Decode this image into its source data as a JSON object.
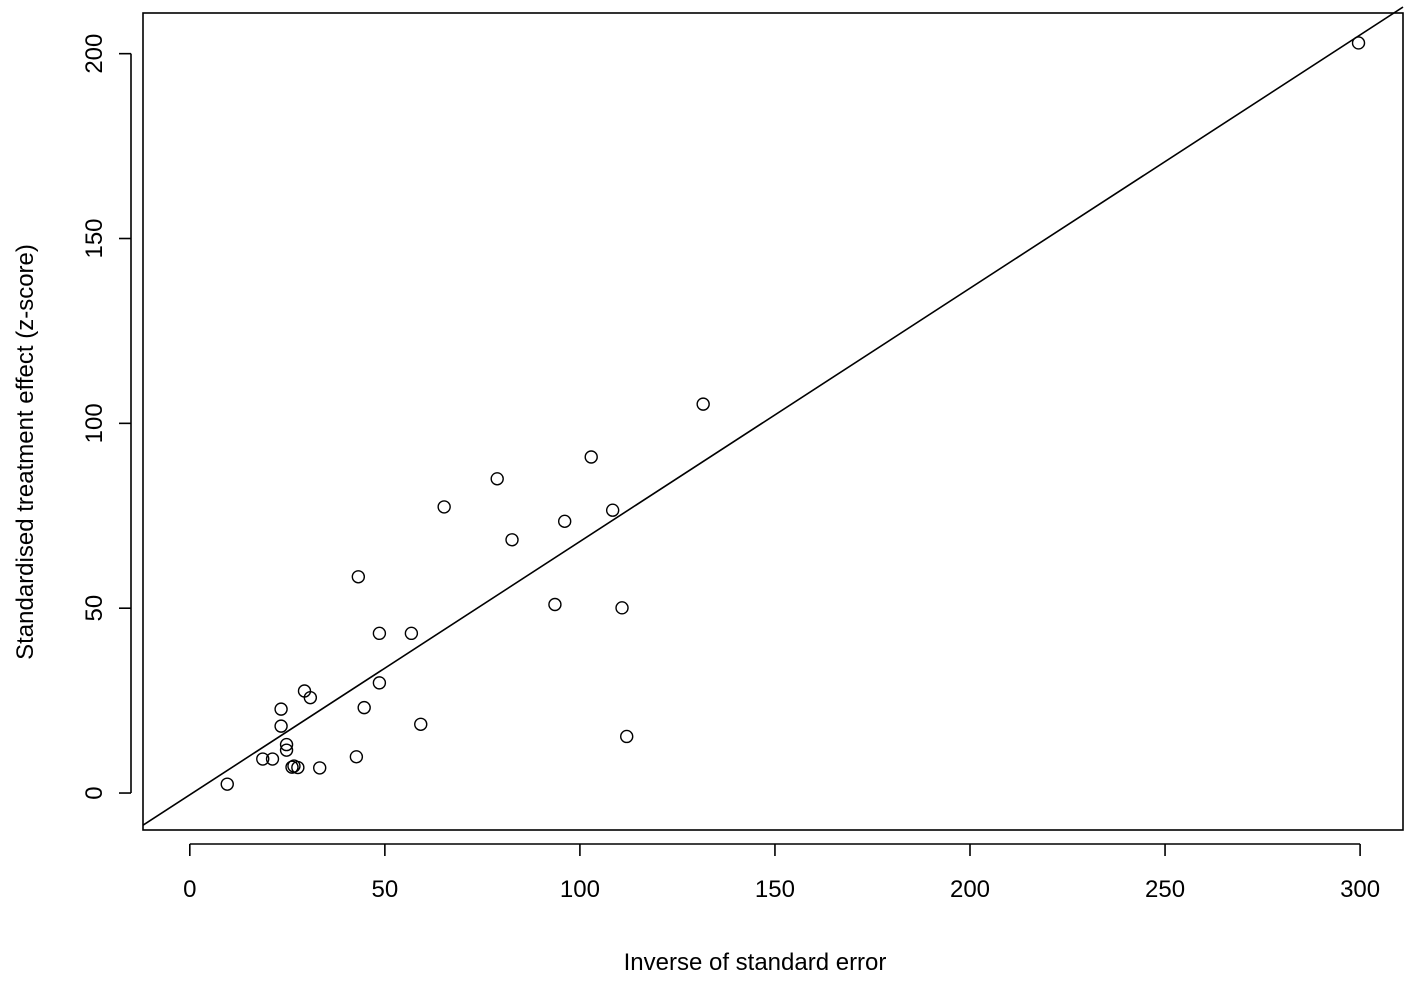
{
  "chart_data": {
    "type": "scatter",
    "title": "",
    "xlabel": "Inverse of standard error",
    "ylabel": "Standardised treatment effect (z-score)",
    "xlim": [
      -12,
      311
    ],
    "ylim": [
      -10,
      211
    ],
    "x_ticks": [
      0,
      50,
      100,
      150,
      200,
      250,
      300
    ],
    "y_ticks": [
      0,
      50,
      100,
      150,
      200
    ],
    "x_tick_labels": [
      "0",
      "50",
      "100",
      "150",
      "200",
      "250",
      "300"
    ],
    "y_tick_labels": [
      "0",
      "50",
      "100",
      "150",
      "200"
    ],
    "grid": false,
    "marker": "open-circle",
    "colors": {
      "points": "#000000",
      "line": "#000000",
      "axes": "#000000",
      "background": "#ffffff"
    },
    "points": [
      {
        "x": 9.6,
        "y": 2.4
      },
      {
        "x": 18.7,
        "y": 9.2
      },
      {
        "x": 21.2,
        "y": 9.2
      },
      {
        "x": 23.4,
        "y": 22.7
      },
      {
        "x": 23.4,
        "y": 18.1
      },
      {
        "x": 24.8,
        "y": 13.1
      },
      {
        "x": 24.8,
        "y": 11.6
      },
      {
        "x": 26.2,
        "y": 7.0
      },
      {
        "x": 26.7,
        "y": 7.3
      },
      {
        "x": 27.7,
        "y": 6.9
      },
      {
        "x": 29.4,
        "y": 27.6
      },
      {
        "x": 30.9,
        "y": 25.8
      },
      {
        "x": 33.3,
        "y": 6.8
      },
      {
        "x": 42.7,
        "y": 9.8
      },
      {
        "x": 43.2,
        "y": 58.5
      },
      {
        "x": 44.7,
        "y": 23.1
      },
      {
        "x": 48.6,
        "y": 43.2
      },
      {
        "x": 48.6,
        "y": 29.8
      },
      {
        "x": 56.8,
        "y": 43.2
      },
      {
        "x": 59.2,
        "y": 18.6
      },
      {
        "x": 65.2,
        "y": 77.4
      },
      {
        "x": 78.8,
        "y": 85.0
      },
      {
        "x": 82.6,
        "y": 68.5
      },
      {
        "x": 93.6,
        "y": 51.0
      },
      {
        "x": 96.1,
        "y": 73.5
      },
      {
        "x": 102.9,
        "y": 90.9
      },
      {
        "x": 108.4,
        "y": 76.5
      },
      {
        "x": 110.8,
        "y": 50.1
      },
      {
        "x": 112.0,
        "y": 15.3
      },
      {
        "x": 131.6,
        "y": 105.2
      },
      {
        "x": 299.6,
        "y": 202.9
      }
    ],
    "fit_line": {
      "x": [
        -12,
        311
      ],
      "y": [
        -8.7,
        212.6
      ]
    }
  }
}
